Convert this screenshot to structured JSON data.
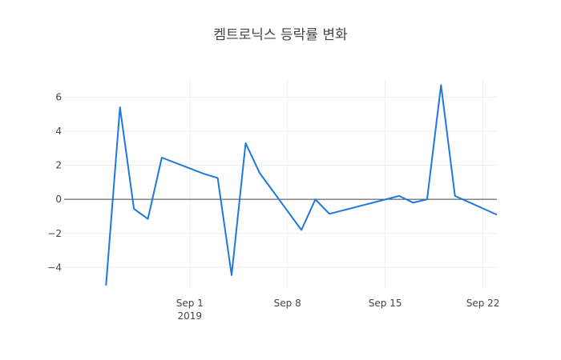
{
  "chart_data": {
    "type": "line",
    "title": "켐트로닉스 등락률 변화",
    "xlabel": "",
    "ylabel": "",
    "x_range": [
      "2019-08-23",
      "2019-09-23"
    ],
    "ylim": [
      -5.2,
      7.0
    ],
    "y_ticks": [
      -4,
      -2,
      0,
      2,
      4,
      6
    ],
    "y_tick_labels": [
      "−4",
      "−2",
      "0",
      "2",
      "4",
      "6"
    ],
    "x_ticks": [
      "2019-09-01",
      "2019-09-08",
      "2019-09-15",
      "2019-09-22"
    ],
    "x_tick_labels": [
      "Sep 1",
      "Sep 8",
      "Sep 15",
      "Sep 22"
    ],
    "x_year_label": "2019",
    "grid": true,
    "zero_line": true,
    "line_color": "#1f77e0",
    "series": [
      {
        "x": [
          "2019-08-26",
          "2019-08-27",
          "2019-08-28",
          "2019-08-29",
          "2019-08-30",
          "2019-09-02",
          "2019-09-03",
          "2019-09-04",
          "2019-09-05",
          "2019-09-06",
          "2019-09-09",
          "2019-09-10",
          "2019-09-11",
          "2019-09-16",
          "2019-09-17",
          "2019-09-18",
          "2019-09-19",
          "2019-09-20",
          "2019-09-23"
        ],
        "y": [
          -5.05,
          5.4,
          -0.55,
          -1.15,
          2.45,
          1.5,
          1.25,
          -4.45,
          3.3,
          1.55,
          -1.8,
          0.0,
          -0.85,
          0.2,
          -0.2,
          0.0,
          6.7,
          0.2,
          -0.9
        ]
      }
    ]
  }
}
